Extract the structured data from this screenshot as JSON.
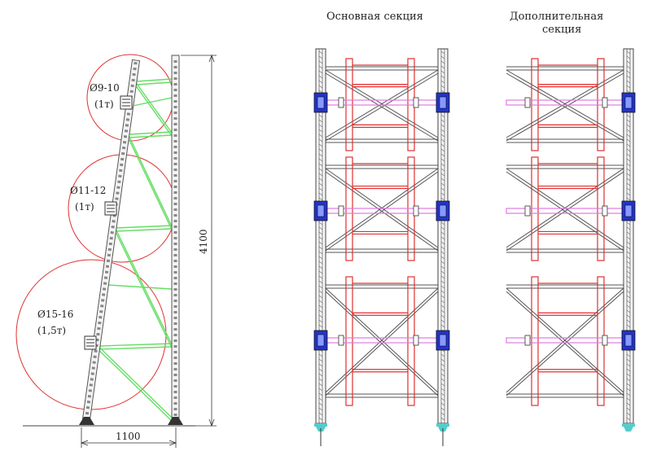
{
  "side_view": {
    "roll_labels": [
      {
        "diameter": "Ø9-10",
        "load": "(1т)"
      },
      {
        "diameter": "Ø11-12",
        "load": "(1т)"
      },
      {
        "diameter": "Ø15-16",
        "load": "(1,5т)"
      }
    ],
    "height_dimension": "4100",
    "width_dimension": "1100"
  },
  "sections": {
    "main_title": "Основная секция",
    "additional_title_line1": "Дополнительная",
    "additional_title_line2": "секция"
  },
  "colors": {
    "frame": "#555555",
    "roll_circle": "#e03030",
    "brace": "#66dd66",
    "beam": "#e03030",
    "holder": "#e07ae0",
    "clamp": "#2233cc",
    "foot": "#55cccc",
    "dim": "#333333"
  }
}
